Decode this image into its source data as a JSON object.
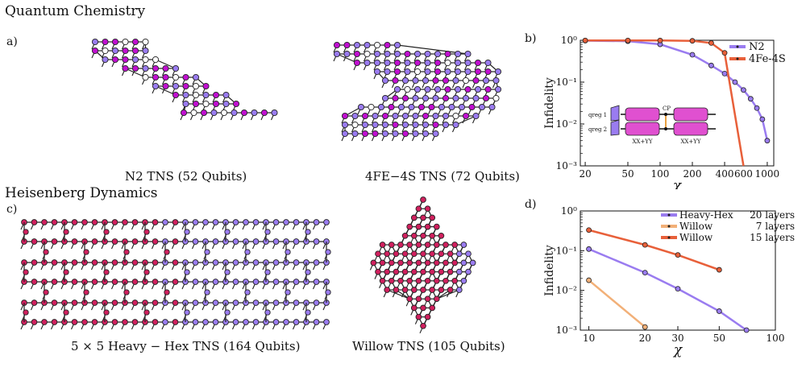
{
  "sections": {
    "qc_title": "Quantum Chemistry",
    "hd_title": "Heisenberg Dynamics"
  },
  "panels": {
    "a": {
      "label": "a)",
      "captions": [
        "N2 TNS (52 Qubits)",
        "4FE−4S TNS (72 Qubits)"
      ]
    },
    "b": {
      "label": "b)"
    },
    "c": {
      "label": "c)",
      "captions": [
        "5 × 5 Heavy − Hex TNS (164 Qubits)",
        "Willow TNS (105 Qubits)"
      ]
    },
    "d": {
      "label": "d)"
    }
  },
  "colors": {
    "purple": "#9a7cf0",
    "magenta": "#c010d0",
    "white": "#ffffff",
    "crimson": "#d0205e",
    "orange": "#e8603a",
    "light_orange": "#f2b078",
    "pink_box": "#e050d0"
  },
  "chart_data": [
    {
      "type": "line",
      "xlabel": "χ",
      "ylabel": "Infidelity",
      "xscale": "log",
      "yscale": "log",
      "xlim": [
        18,
        1150
      ],
      "ylim": [
        0.001,
        1
      ],
      "xticks": [
        20,
        50,
        100,
        200,
        400,
        600,
        1000
      ],
      "xtick_labels": [
        "20",
        "50",
        "100",
        "200",
        "400",
        "600",
        "1000"
      ],
      "yticks": [
        1,
        0.1,
        0.01,
        0.001
      ],
      "ytick_labels": [
        "10⁰",
        "10⁻¹",
        "10⁻²",
        "10⁻³"
      ],
      "legend": "top-right",
      "series": [
        {
          "name": "N2",
          "color": "#9a7cf0",
          "x": [
            20,
            50,
            100,
            200,
            300,
            400,
            500,
            600,
            700,
            800,
            900,
            1000
          ],
          "y": [
            0.98,
            0.95,
            0.8,
            0.45,
            0.25,
            0.16,
            0.1,
            0.065,
            0.04,
            0.024,
            0.013,
            0.004
          ]
        },
        {
          "name": "4Fe-4S",
          "color": "#e8603a",
          "x": [
            20,
            50,
            100,
            200,
            300,
            400,
            600
          ],
          "y": [
            0.99,
            0.99,
            0.99,
            0.97,
            0.86,
            0.5,
            0.00095
          ]
        }
      ],
      "inset": {
        "qreg1": "qreg 1",
        "qreg2": "qreg 2",
        "cp": "CP",
        "gate_left": "XX+YY",
        "gate_right": "XX+YY"
      }
    },
    {
      "type": "line",
      "xlabel": "χ",
      "ylabel": "Infidelity",
      "xscale": "log",
      "yscale": "log",
      "xlim": [
        9,
        100
      ],
      "ylim": [
        0.001,
        1
      ],
      "xticks": [
        10,
        20,
        30,
        50,
        100
      ],
      "xtick_labels": [
        "10",
        "20",
        "30",
        "50",
        "100"
      ],
      "yticks": [
        1,
        0.1,
        0.01,
        0.001
      ],
      "ytick_labels": [
        "10⁰",
        "10⁻¹",
        "10⁻²",
        "10⁻³"
      ],
      "legend": "top-right",
      "series": [
        {
          "name": "Heavy-Hex",
          "layers": "20 layers",
          "color": "#9a7cf0",
          "x": [
            10,
            20,
            30,
            50,
            70
          ],
          "y": [
            0.11,
            0.028,
            0.011,
            0.003,
            0.001
          ]
        },
        {
          "name": "Willow",
          "layers": "7 layers",
          "color": "#f2b078",
          "x": [
            10,
            20
          ],
          "y": [
            0.018,
            0.0012
          ]
        },
        {
          "name": "Willow",
          "layers": "15 layers",
          "color": "#e8603a",
          "x": [
            10,
            20,
            30,
            50
          ],
          "y": [
            0.33,
            0.14,
            0.078,
            0.033
          ]
        }
      ]
    }
  ]
}
